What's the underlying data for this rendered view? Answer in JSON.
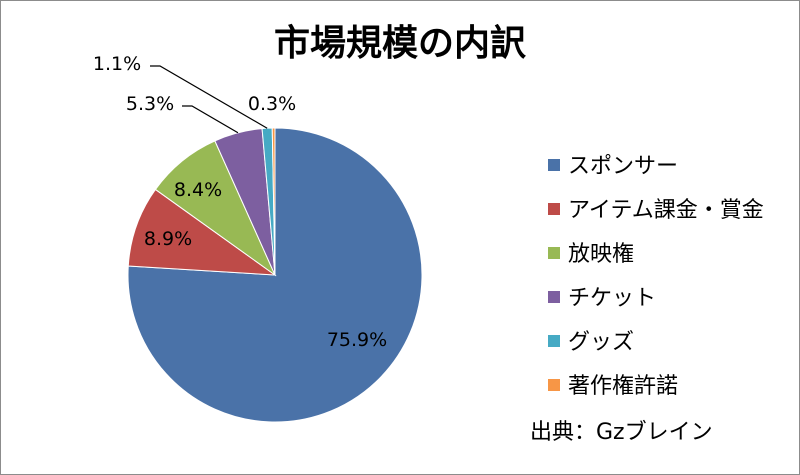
{
  "chart_data": {
    "type": "pie",
    "title": "市場規模の内訳",
    "categories": [
      "スポンサー",
      "アイテム課金・賞金",
      "放映権",
      "チケット",
      "グッズ",
      "著作権許諾"
    ],
    "values": [
      75.9,
      8.9,
      8.4,
      5.3,
      1.1,
      0.3
    ],
    "data_labels": [
      "75.9%",
      "8.9%",
      "8.4%",
      "5.3%",
      "1.1%",
      "0.3%"
    ],
    "colors": [
      "#4a72a8",
      "#be4b48",
      "#98b954",
      "#7d5fa0",
      "#46aac4",
      "#f79646"
    ],
    "legend_position": "right"
  },
  "source": "出典：Gzブレイン"
}
